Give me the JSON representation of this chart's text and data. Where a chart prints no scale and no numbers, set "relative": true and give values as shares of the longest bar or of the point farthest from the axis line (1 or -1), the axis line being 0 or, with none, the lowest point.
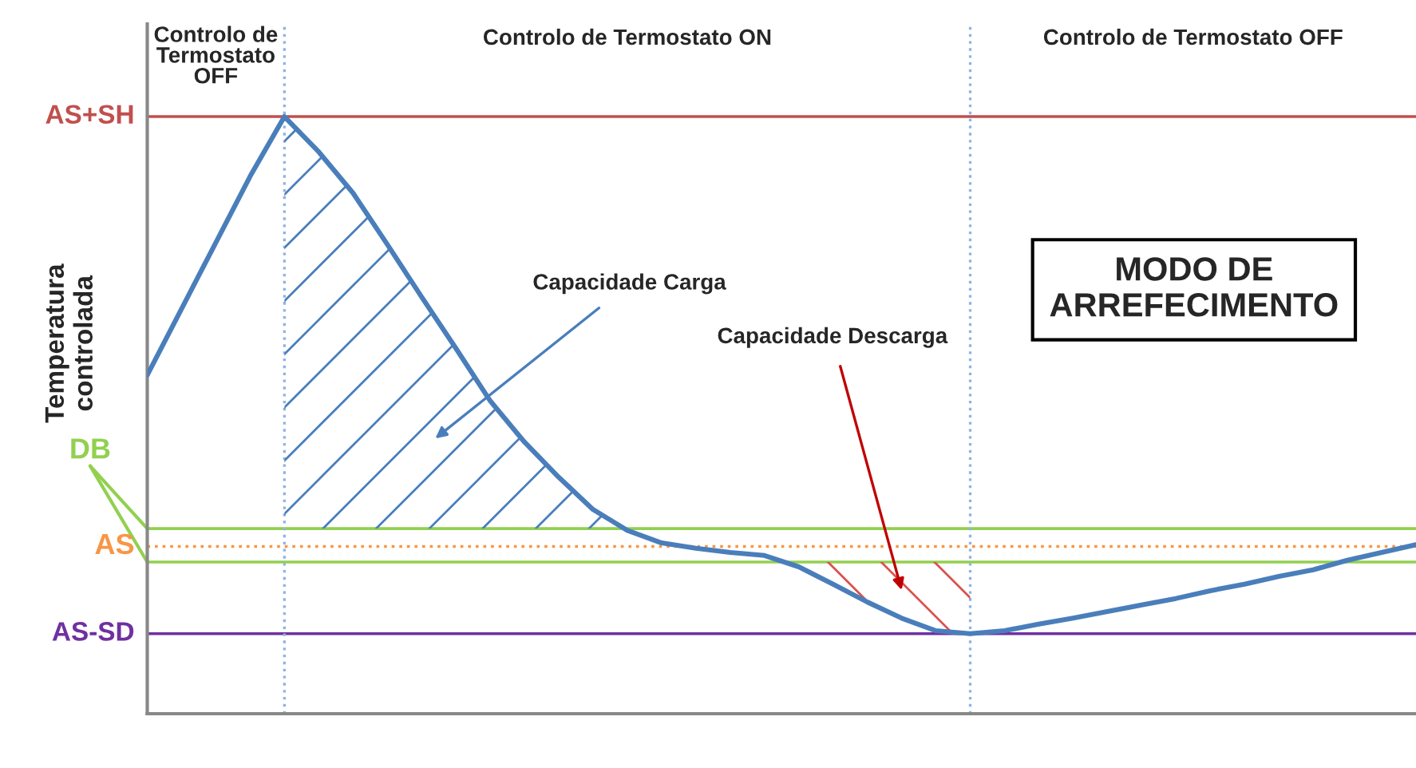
{
  "chart_data": {
    "type": "line",
    "relative": true,
    "ylabel": "Temperatura\ncontrolada",
    "categories": [
      null,
      null,
      null,
      null,
      null,
      null,
      null,
      null,
      null,
      null,
      null,
      null,
      null,
      null,
      null,
      null,
      null,
      null,
      null,
      null,
      null,
      null,
      null,
      null,
      null,
      null,
      null,
      null,
      null,
      null,
      null,
      null,
      null,
      null,
      null,
      null,
      null,
      null
    ],
    "marker": "none",
    "line_style": "solid",
    "series": [
      {
        "color": "#4a7ebb",
        "values": [
          0.567,
          0.678,
          0.789,
          0.9,
          1.0,
          0.941,
          0.872,
          0.786,
          0.698,
          0.612,
          0.524,
          0.455,
          0.396,
          0.342,
          0.307,
          0.286,
          0.277,
          0.27,
          0.265,
          0.246,
          0.217,
          0.187,
          0.16,
          0.139,
          0.134,
          0.139,
          0.15,
          0.16,
          0.171,
          0.182,
          0.193,
          0.206,
          0.217,
          0.23,
          0.241,
          0.257,
          0.27,
          0.283
        ]
      },
      {
        "color": "#4a7ebb",
        "values": [
          null,
          null,
          null,
          null,
          null,
          null,
          null,
          null,
          null,
          null,
          null,
          null,
          null,
          null,
          null,
          null,
          null,
          null,
          null,
          null,
          null,
          null,
          null,
          null,
          null,
          null,
          null,
          null,
          null,
          null,
          null,
          null,
          null,
          null,
          null,
          null,
          null,
          null
        ],
        "lower": [
          null,
          null,
          null,
          null,
          0.31,
          0.31,
          0.31,
          0.31,
          0.31,
          0.31,
          0.31,
          0.31,
          0.31,
          0.31,
          0.31,
          null,
          null,
          null,
          null,
          null,
          null,
          null,
          null,
          null,
          null,
          null,
          null,
          null,
          null,
          null,
          null,
          null,
          null,
          null,
          null,
          null,
          null,
          null
        ],
        "upper": [
          null,
          null,
          null,
          null,
          1.0,
          0.941,
          0.872,
          0.786,
          0.698,
          0.612,
          0.524,
          0.455,
          0.396,
          0.342,
          0.31,
          null,
          null,
          null,
          null,
          null,
          null,
          null,
          null,
          null,
          null,
          null,
          null,
          null,
          null,
          null,
          null,
          null,
          null,
          null,
          null,
          null,
          null,
          null
        ]
      },
      {
        "color": "#d9534f",
        "values": [
          null,
          null,
          null,
          null,
          null,
          null,
          null,
          null,
          null,
          null,
          null,
          null,
          null,
          null,
          null,
          null,
          null,
          null,
          null,
          null,
          null,
          null,
          null,
          null,
          null,
          null,
          null,
          null,
          null,
          null,
          null,
          null,
          null,
          null,
          null,
          null,
          null,
          null
        ],
        "lower": [
          null,
          null,
          null,
          null,
          null,
          null,
          null,
          null,
          null,
          null,
          null,
          null,
          null,
          null,
          null,
          null,
          null,
          null,
          null,
          0.246,
          0.217,
          0.187,
          0.16,
          0.139,
          0.134,
          null,
          null,
          null,
          null,
          null,
          null,
          null,
          null,
          null,
          null,
          null,
          null,
          null
        ],
        "upper": [
          null,
          null,
          null,
          null,
          null,
          null,
          null,
          null,
          null,
          null,
          null,
          null,
          null,
          null,
          null,
          null,
          null,
          null,
          null,
          0.254,
          0.254,
          0.254,
          0.254,
          0.254,
          0.254,
          null,
          null,
          null,
          null,
          null,
          null,
          null,
          null,
          null,
          null,
          null,
          null,
          null
        ]
      }
    ],
    "ref_lines": [
      {
        "axis": "y",
        "value": 1.0,
        "label": "AS+SH",
        "color": "#c0504d",
        "line_style": "solid"
      },
      {
        "axis": "y",
        "value": 0.31,
        "label": "DB",
        "color": "#92d050",
        "line_style": "solid"
      },
      {
        "axis": "y",
        "value": 0.28,
        "label": "AS",
        "color": "#f79646",
        "line_style": "dotted"
      },
      {
        "axis": "y",
        "value": 0.254,
        "label": null,
        "color": "#92d050",
        "line_style": "solid"
      },
      {
        "axis": "y",
        "value": 0.134,
        "label": "AS-SD",
        "color": "#7030a0",
        "line_style": "solid"
      }
    ],
    "annotations": [
      "Capacidade Carga",
      "Capacidade Descarga",
      "Controlo de\nTermostato\nOFF",
      "Controlo de Termostato ON",
      "Controlo de Termostato OFF",
      "MODO DE\nARREFECIMENTO"
    ]
  }
}
